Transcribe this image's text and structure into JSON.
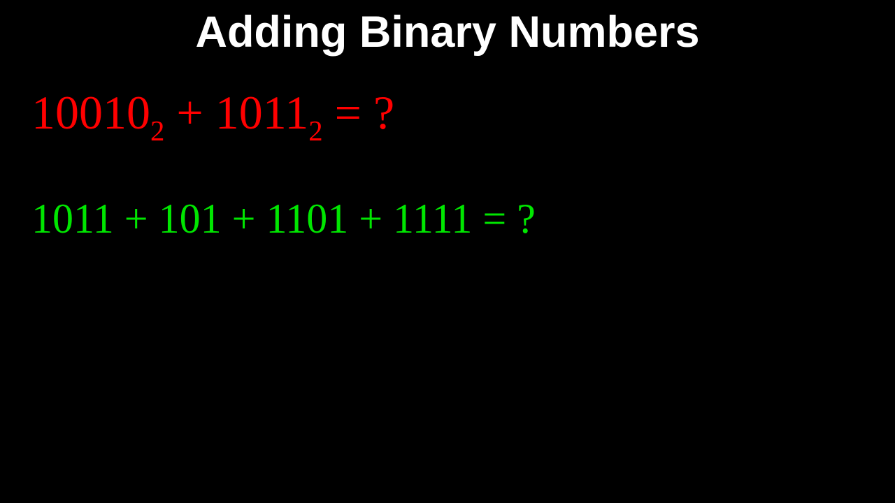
{
  "title": {
    "text": "Adding Binary Numbers",
    "fontsize": 63,
    "color": "#ffffff",
    "weight": "bold"
  },
  "equation1": {
    "color": "#ff0000",
    "fontsize": 68,
    "parts": {
      "num1": "10010",
      "sub1": "2",
      "plus": " + ",
      "num2": "1011",
      "sub2": "2",
      "eq": " = ?"
    }
  },
  "equation2": {
    "color": "#00e600",
    "fontsize": 60,
    "text": "1011 + 101 + 1101 + 1111 = ?"
  },
  "background_color": "#000000"
}
